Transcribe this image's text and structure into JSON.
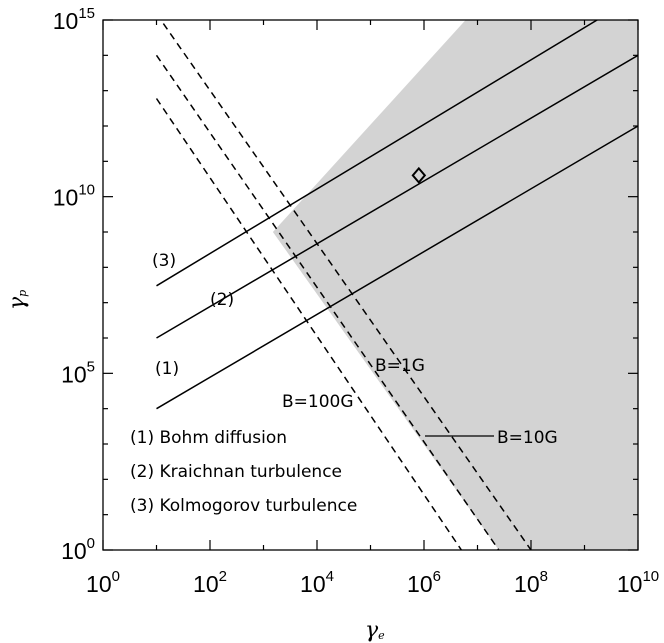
{
  "chart_data": {
    "type": "line",
    "title": "",
    "xlabel": "γ",
    "xlabel_sub": "e",
    "ylabel": "γ",
    "ylabel_sub": "p",
    "x_scale": "log",
    "y_scale": "log",
    "xlim": [
      1,
      10000000000
    ],
    "ylim": [
      1,
      1000000000000000
    ],
    "x_ticks": [
      {
        "base": "10",
        "exp": "0",
        "value": 1
      },
      {
        "base": "10",
        "exp": "2",
        "value": 100
      },
      {
        "base": "10",
        "exp": "4",
        "value": 10000
      },
      {
        "base": "10",
        "exp": "6",
        "value": 1000000
      },
      {
        "base": "10",
        "exp": "8",
        "value": 100000000
      },
      {
        "base": "10",
        "exp": "10",
        "value": 10000000000
      }
    ],
    "y_ticks": [
      {
        "base": "10",
        "exp": "0",
        "value": 1
      },
      {
        "base": "10",
        "exp": "5",
        "value": 100000
      },
      {
        "base": "10",
        "exp": "10",
        "value": 10000000000
      },
      {
        "base": "10",
        "exp": "15",
        "value": 1000000000000000
      }
    ],
    "grid": false,
    "shaded_region": {
      "color": "#d3d3d3",
      "polygon": [
        [
          1500,
          1000000000
        ],
        [
          6000000,
          1000000000000000
        ],
        [
          10000000000,
          1000000000000000
        ],
        [
          10000000000,
          1
        ],
        [
          25000000,
          1
        ]
      ]
    },
    "solid_lines": [
      {
        "label": "(1)",
        "points": [
          [
            10,
            10000
          ],
          [
            10000000000,
            1000000000000
          ]
        ]
      },
      {
        "label": "(2)",
        "points": [
          [
            10,
            1000000
          ],
          [
            10000000000,
            100000000000000
          ]
        ]
      },
      {
        "label": "(3)",
        "points": [
          [
            10,
            30000000
          ],
          [
            10000000000,
            5000000000000000
          ]
        ]
      }
    ],
    "dashed_lines": [
      {
        "label": "B=1G",
        "points": [
          [
            10,
            1500000000000000
          ],
          [
            100000000,
            1
          ]
        ]
      },
      {
        "label": "B=10G",
        "points": [
          [
            10,
            100000000000000
          ],
          [
            25000000,
            1
          ]
        ]
      },
      {
        "label": "B=100G",
        "points": [
          [
            10,
            6000000000000
          ],
          [
            5000000,
            1
          ]
        ]
      }
    ],
    "marker": {
      "shape": "diamond",
      "x": 800000,
      "y": 40000000000
    },
    "legend": [
      {
        "text": "(1) Bohm diffusion"
      },
      {
        "text": "(2) Kraichnan turbulence"
      },
      {
        "text": "(3) Kolmogorov turbulence"
      }
    ]
  }
}
